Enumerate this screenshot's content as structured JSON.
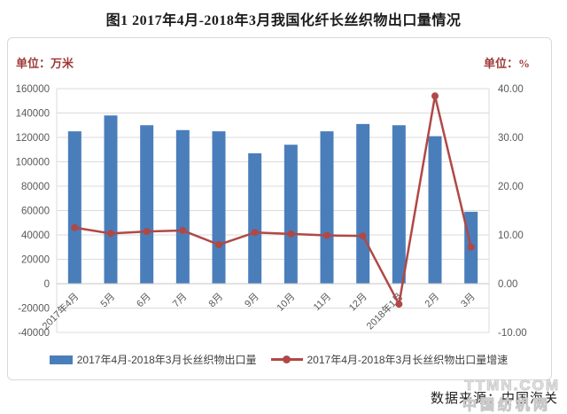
{
  "title": "图1  2017年4月-2018年3月我国化纤长丝织物出口量情况",
  "left_unit": "单位：万米",
  "right_unit": "单位：%",
  "legend": {
    "bar_label": "2017年4月-2018年3月长丝织物出口量",
    "line_label": "2017年4月-2018年3月长丝织物出口量增速"
  },
  "source": "数据来源：中国海关",
  "watermark": {
    "line1": "TTMN.COM",
    "line2": "中国纺机网"
  },
  "colors": {
    "bar": "#4A7EBB",
    "line": "#B04846",
    "grid": "#DBDBDB",
    "zero_axis": "#C6C6C6",
    "axis_text": "#595959",
    "unit_text": "#9E3A38",
    "title_text": "#1A1A1A",
    "legend_text": "#3F3F3F",
    "panel_border": "#D9D9D9",
    "watermark": "#C9C9C9"
  },
  "chart_data": {
    "type": "bar+line combo, dual axis",
    "title": "图1  2017年4月-2018年3月我国化纤长丝织物出口量情况",
    "categories": [
      "2017年4月",
      "5月",
      "6月",
      "7月",
      "8月",
      "9月",
      "10月",
      "11月",
      "12月",
      "2018年1月",
      "2月",
      "3月"
    ],
    "series": [
      {
        "name": "2017年4月-2018年3月长丝织物出口量",
        "type": "bar",
        "axis": "left",
        "unit": "万米",
        "values": [
          125000,
          138000,
          130000,
          126000,
          125000,
          107000,
          114000,
          125000,
          131000,
          130000,
          121000,
          59000
        ]
      },
      {
        "name": "2017年4月-2018年3月长丝织物出口量增速",
        "type": "line",
        "axis": "right",
        "unit": "%",
        "values": [
          11.5,
          10.3,
          10.7,
          10.9,
          8.0,
          10.5,
          10.2,
          9.9,
          9.8,
          -4.2,
          38.5,
          7.5
        ]
      }
    ],
    "left_axis": {
      "title": "单位：万米",
      "min": -40000,
      "max": 160000,
      "tick_values": [
        160000,
        140000,
        120000,
        100000,
        80000,
        60000,
        40000,
        20000,
        0,
        -20000,
        -40000
      ],
      "tick_labels": [
        "160000",
        "140000",
        "120000",
        "100000",
        "80000",
        "60000",
        "40000",
        "20000",
        "0",
        "-20000",
        "-40000"
      ]
    },
    "right_axis": {
      "title": "单位：%",
      "min": -10,
      "max": 40,
      "tick_values": [
        40,
        30,
        20,
        10,
        0,
        -10
      ],
      "tick_labels": [
        "40.00",
        "30.00",
        "20.00",
        "10.00",
        "0.00",
        "-10.00"
      ]
    },
    "grid": true,
    "legend_position": "bottom"
  }
}
